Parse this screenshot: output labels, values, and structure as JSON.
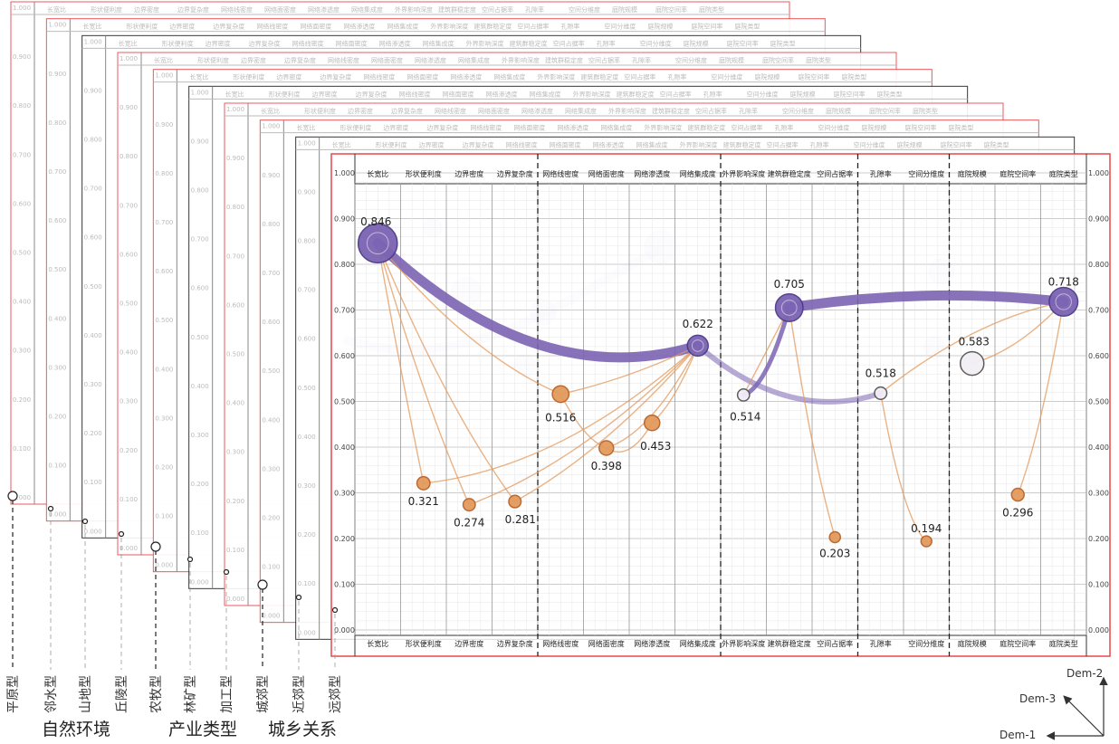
{
  "chart_data": {
    "type": "scatter",
    "xlabel": "",
    "ylabel": "",
    "ylim": [
      0,
      1
    ],
    "y_ticks": [
      "0.000",
      "0.100",
      "0.200",
      "0.300",
      "0.400",
      "0.500",
      "0.600",
      "0.700",
      "0.800",
      "0.900",
      "1.000"
    ],
    "categories": [
      "长宽比",
      "形状便利度",
      "边界密度",
      "边界复杂度",
      "网络线密度",
      "网络面密度",
      "网络渗透度",
      "网络集成度",
      "外界影响深度",
      "建筑群稳定度",
      "空间占据率",
      "孔隙率",
      "空间分维度",
      "庭院规模",
      "庭院空间率",
      "庭院类型"
    ],
    "series": [
      {
        "color": "#7b64b3",
        "points": [
          {
            "x": "长宽比",
            "y": 0.846
          },
          {
            "x": "网络集成度",
            "y": 0.622
          },
          {
            "x": "外界影响深度",
            "y": 0.514
          },
          {
            "x": "建筑群稳定度",
            "y": 0.705
          },
          {
            "x": "孔隙率",
            "y": 0.518
          },
          {
            "x": "庭院类型",
            "y": 0.718
          }
        ]
      },
      {
        "color": "#e39a5c",
        "points": [
          {
            "x": "形状便利度",
            "y": 0.321
          },
          {
            "x": "边界密度",
            "y": 0.274
          },
          {
            "x": "边界复杂度",
            "y": 0.281
          },
          {
            "x": "网络线密度",
            "y": 0.516
          },
          {
            "x": "网络面密度",
            "y": 0.398
          },
          {
            "x": "网络渗透度",
            "y": 0.453
          },
          {
            "x": "空间占据率",
            "y": 0.203
          },
          {
            "x": "空间分维度",
            "y": 0.194
          },
          {
            "x": "庭院规模",
            "y": 0.583
          },
          {
            "x": "庭院空间率",
            "y": 0.296
          }
        ]
      }
    ],
    "stack_layers": [
      "平原型",
      "邻水型",
      "山地型",
      "丘陵型",
      "农牧型",
      "林矿型",
      "加工型",
      "城郊型",
      "近郊型",
      "远郊型"
    ],
    "stack_groups": [
      "自然环境",
      "产业类型",
      "城乡关系"
    ],
    "dimension_labels": [
      "Dem-1",
      "Dem-2",
      "Dem-3"
    ],
    "colors": {
      "frame": "#e8474c",
      "strong_link": "#7b64b3",
      "weak_link": "#e39a5c",
      "ghost": "#d9d0ea"
    }
  }
}
